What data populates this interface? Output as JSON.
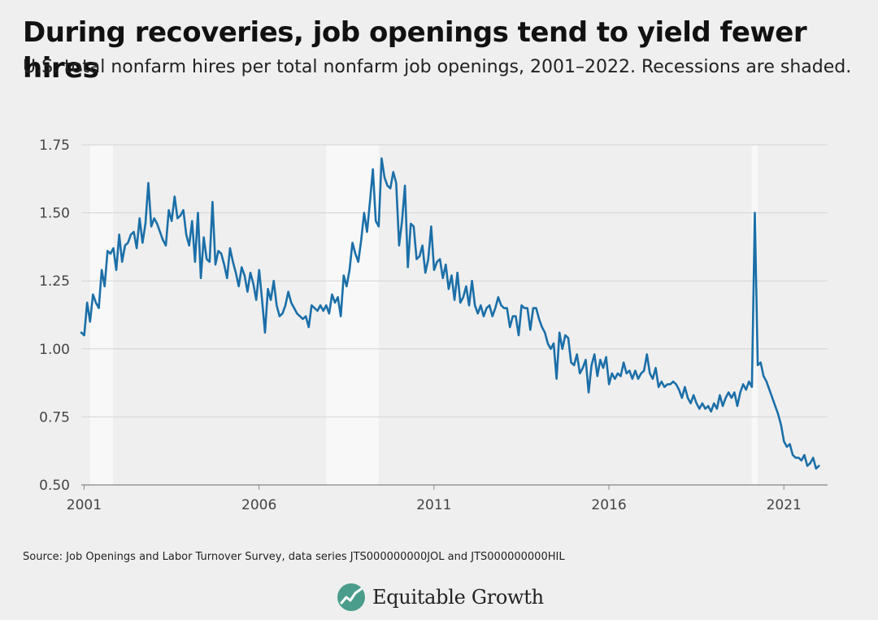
{
  "header": {
    "title": "During recoveries, job openings tend to yield fewer hires",
    "subtitle": "U.S. total nonfarm hires per total nonfarm job openings, 2001–2022. Recessions are shaded."
  },
  "footer": {
    "source": "Source: Job Openings and Labor Turnover Survey, data series JTS000000000JOL and JTS000000000HIL",
    "brand_name": "Equitable Growth",
    "brand_icon": "growth-chart-logo-icon"
  },
  "colors": {
    "line": "#1b6fa8",
    "recession": "#f8f8f8",
    "grid": "#d4d4d4",
    "background": "#efefef",
    "logo": "#4a9d8a"
  },
  "chart_data": {
    "type": "line",
    "title": "During recoveries, job openings tend to yield fewer hires",
    "subtitle": "U.S. total nonfarm hires per total nonfarm job openings, 2001–2022. Recessions are shaded.",
    "xlabel": "",
    "ylabel": "",
    "xlim": [
      2000.92,
      2022.25
    ],
    "ylim": [
      0.5,
      1.75
    ],
    "yticks": [
      0.5,
      0.75,
      1.0,
      1.25,
      1.5,
      1.75
    ],
    "ytick_labels": [
      "0.50",
      "0.75",
      "1.00",
      "1.25",
      "1.50",
      "1.75"
    ],
    "xticks": [
      2001,
      2006,
      2011,
      2016,
      2021
    ],
    "xtick_labels": [
      "2001",
      "2006",
      "2011",
      "2016",
      "2021"
    ],
    "grid": true,
    "legend": "none",
    "recessions": [
      {
        "start": 2001.17,
        "end": 2001.83
      },
      {
        "start": 2007.92,
        "end": 2009.42
      },
      {
        "start": 2020.08,
        "end": 2020.25
      }
    ],
    "series": [
      {
        "x_start": 2000.92,
        "x_step_months": 1,
        "values": [
          1.06,
          1.05,
          1.17,
          1.1,
          1.2,
          1.17,
          1.15,
          1.29,
          1.23,
          1.36,
          1.35,
          1.37,
          1.29,
          1.42,
          1.32,
          1.38,
          1.39,
          1.42,
          1.43,
          1.37,
          1.48,
          1.39,
          1.46,
          1.61,
          1.45,
          1.48,
          1.46,
          1.43,
          1.4,
          1.38,
          1.51,
          1.47,
          1.56,
          1.48,
          1.49,
          1.51,
          1.42,
          1.38,
          1.47,
          1.32,
          1.5,
          1.26,
          1.41,
          1.33,
          1.32,
          1.54,
          1.31,
          1.36,
          1.35,
          1.31,
          1.26,
          1.37,
          1.32,
          1.28,
          1.23,
          1.3,
          1.27,
          1.21,
          1.28,
          1.24,
          1.18,
          1.29,
          1.18,
          1.06,
          1.22,
          1.18,
          1.25,
          1.16,
          1.12,
          1.13,
          1.16,
          1.21,
          1.17,
          1.15,
          1.13,
          1.12,
          1.11,
          1.12,
          1.08,
          1.16,
          1.15,
          1.14,
          1.16,
          1.14,
          1.16,
          1.13,
          1.2,
          1.17,
          1.19,
          1.12,
          1.27,
          1.23,
          1.29,
          1.39,
          1.35,
          1.32,
          1.4,
          1.5,
          1.43,
          1.54,
          1.66,
          1.47,
          1.45,
          1.7,
          1.63,
          1.6,
          1.59,
          1.65,
          1.61,
          1.38,
          1.47,
          1.6,
          1.3,
          1.46,
          1.45,
          1.33,
          1.34,
          1.38,
          1.28,
          1.33,
          1.45,
          1.29,
          1.32,
          1.33,
          1.26,
          1.31,
          1.22,
          1.27,
          1.18,
          1.28,
          1.17,
          1.19,
          1.23,
          1.16,
          1.25,
          1.16,
          1.13,
          1.16,
          1.12,
          1.15,
          1.16,
          1.12,
          1.15,
          1.19,
          1.16,
          1.15,
          1.15,
          1.08,
          1.12,
          1.12,
          1.05,
          1.16,
          1.15,
          1.15,
          1.07,
          1.15,
          1.15,
          1.11,
          1.08,
          1.06,
          1.02,
          1.0,
          1.02,
          0.89,
          1.06,
          1.0,
          1.05,
          1.04,
          0.95,
          0.94,
          0.98,
          0.91,
          0.93,
          0.96,
          0.84,
          0.94,
          0.98,
          0.9,
          0.96,
          0.93,
          0.97,
          0.87,
          0.91,
          0.89,
          0.91,
          0.9,
          0.95,
          0.91,
          0.92,
          0.89,
          0.92,
          0.89,
          0.91,
          0.92,
          0.98,
          0.91,
          0.89,
          0.93,
          0.86,
          0.88,
          0.86,
          0.87,
          0.87,
          0.88,
          0.87,
          0.85,
          0.82,
          0.86,
          0.82,
          0.8,
          0.83,
          0.8,
          0.78,
          0.8,
          0.78,
          0.79,
          0.77,
          0.8,
          0.78,
          0.83,
          0.79,
          0.82,
          0.84,
          0.82,
          0.84,
          0.79,
          0.84,
          0.87,
          0.85,
          0.88,
          0.86,
          1.5,
          0.94,
          0.95,
          0.9,
          0.88,
          0.85,
          0.82,
          0.79,
          0.76,
          0.72,
          0.66,
          0.64,
          0.65,
          0.61,
          0.6,
          0.6,
          0.59,
          0.61,
          0.57,
          0.58,
          0.6,
          0.56,
          0.57
        ]
      }
    ]
  }
}
